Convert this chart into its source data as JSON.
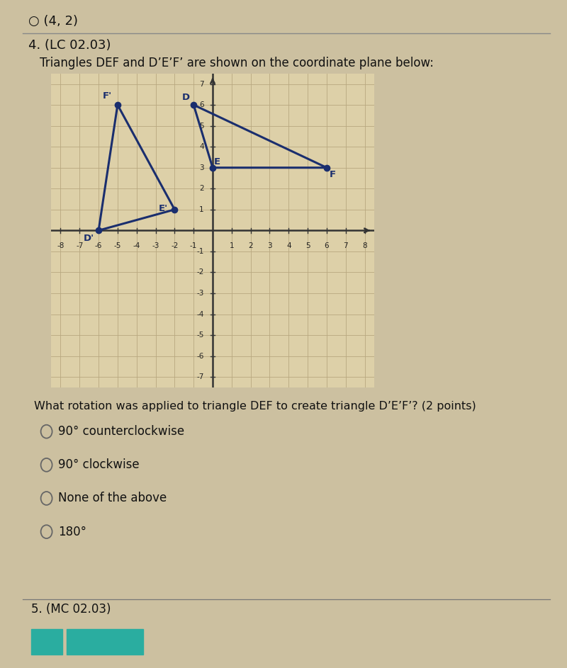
{
  "title_top": "○ (4, 2)",
  "question_number": "4. (LC 02.03)",
  "question_text": "Triangles DEF and D’E’F’ are shown on the coordinate plane below:",
  "triangle_DEF": {
    "D": [
      -1,
      6
    ],
    "E": [
      0,
      3
    ],
    "F": [
      6,
      3
    ]
  },
  "triangle_DpEpFp": {
    "Dp": [
      -6,
      0
    ],
    "Ep": [
      -2,
      1
    ],
    "Fp": [
      -5,
      6
    ]
  },
  "triangle_color": "#1a2e6e",
  "point_color": "#1a2e6e",
  "xlim": [
    -8.5,
    8.5
  ],
  "ylim": [
    -7.5,
    7.5
  ],
  "xticks": [
    -8,
    -7,
    -6,
    -5,
    -4,
    -3,
    -2,
    -1,
    1,
    2,
    3,
    4,
    5,
    6,
    7,
    8
  ],
  "yticks": [
    -7,
    -6,
    -5,
    -4,
    -3,
    -2,
    -1,
    1,
    2,
    3,
    4,
    5,
    6,
    7
  ],
  "grid_color": "#b8a880",
  "bg_color": "#ddd0a8",
  "question_question": "What rotation was applied to triangle DEF to create triangle D’E’F’? (2 points)",
  "choices": [
    "90° counterclockwise",
    "90° clockwise",
    "None of the above",
    "180°"
  ],
  "next_question": "5. (MC 02.03)",
  "page_bg": "#ccc0a0",
  "text_color": "#111111",
  "axis_color": "#333333",
  "tick_fontsize": 7.5,
  "label_fontsize": 9.5
}
